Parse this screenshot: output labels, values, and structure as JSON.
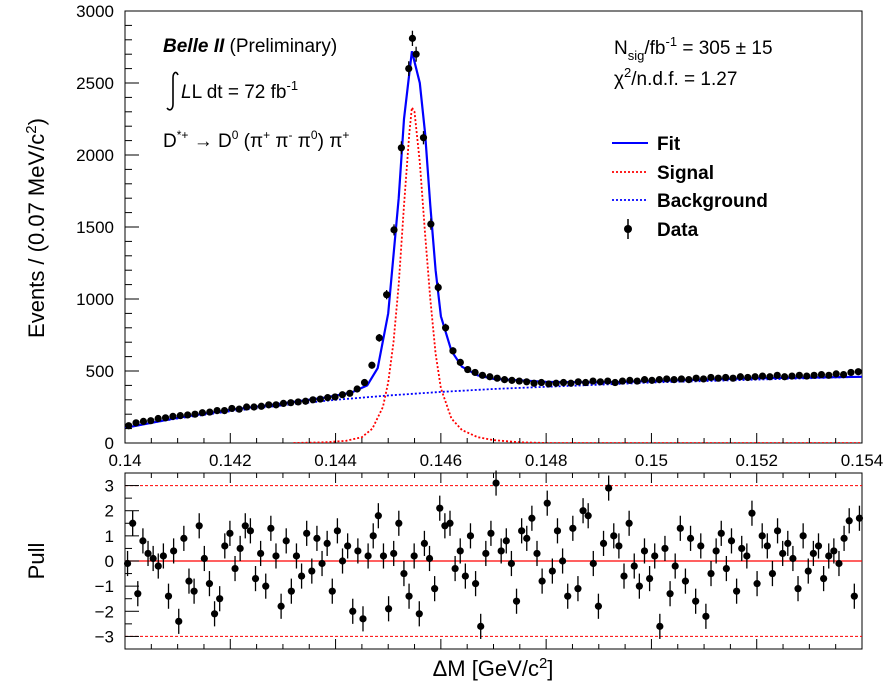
{
  "chart_data": [
    {
      "type": "scatter",
      "panel": "main",
      "ylabel_parts": {
        "pre": "Events / (0.07 MeV/c",
        "sup": "2",
        "post": ")"
      },
      "xlim": [
        0.14,
        0.154
      ],
      "ylim": [
        0,
        3000
      ],
      "x_ticks": [
        0.14,
        0.142,
        0.144,
        0.146,
        0.148,
        0.15,
        0.152,
        0.154
      ],
      "x_tick_labels": [
        "0.14",
        "0.142",
        "0.144",
        "0.146",
        "0.148",
        "0.15",
        "0.152",
        "0.154"
      ],
      "y_ticks": [
        0,
        500,
        1000,
        1500,
        2000,
        2500,
        3000
      ],
      "y_tick_labels": [
        "0",
        "500",
        "1000",
        "1500",
        "2000",
        "2500",
        "3000"
      ],
      "legend_position": "right",
      "legend": [
        {
          "label": "Fit",
          "style": "solid-line",
          "color": "#0000ff"
        },
        {
          "label": "Signal",
          "style": "dotted-line",
          "color": "#ff0000"
        },
        {
          "label": "Background",
          "style": "dotted-line",
          "color": "#0000ff"
        },
        {
          "label": "Data",
          "style": "marker",
          "color": "#000000"
        }
      ],
      "annotations": {
        "experiment": "Belle II",
        "preliminary": "(Preliminary)",
        "lumi_pre": "L dt = 72 fb",
        "lumi_sup": "-1",
        "decay": {
          "p1": "D",
          "p1_sup": "*+",
          "arrow": " → D",
          "p2_sup": "0",
          "p3": " (π",
          "p3_sup": "+",
          "p4": " π",
          "p4_sup": "-",
          "p5": " π",
          "p5_sup": "0",
          "p6": ") π",
          "p6_sup": "+"
        },
        "nsig": {
          "a": "N",
          "a_sub": "sig",
          "b": "/fb",
          "b_sup": "-1",
          "c": " = 305 ± 15"
        },
        "chi2": {
          "a": "χ",
          "a_sup": "2",
          "b": "/n.d.f. = 1.27"
        }
      },
      "series": [
        {
          "name": "Data",
          "points": [
            [
              0.14007,
              120
            ],
            [
              0.14021,
              140
            ],
            [
              0.14035,
              150
            ],
            [
              0.14049,
              155
            ],
            [
              0.14063,
              170
            ],
            [
              0.14077,
              175
            ],
            [
              0.14091,
              185
            ],
            [
              0.14105,
              190
            ],
            [
              0.14119,
              195
            ],
            [
              0.14133,
              200
            ],
            [
              0.14147,
              210
            ],
            [
              0.14161,
              215
            ],
            [
              0.14175,
              225
            ],
            [
              0.14189,
              225
            ],
            [
              0.14203,
              240
            ],
            [
              0.14217,
              235
            ],
            [
              0.14231,
              250
            ],
            [
              0.14245,
              250
            ],
            [
              0.14259,
              255
            ],
            [
              0.14273,
              265
            ],
            [
              0.14287,
              265
            ],
            [
              0.14301,
              275
            ],
            [
              0.14315,
              280
            ],
            [
              0.14329,
              285
            ],
            [
              0.14343,
              290
            ],
            [
              0.14357,
              300
            ],
            [
              0.14371,
              305
            ],
            [
              0.14385,
              315
            ],
            [
              0.14399,
              320
            ],
            [
              0.14413,
              335
            ],
            [
              0.14427,
              345
            ],
            [
              0.14441,
              375
            ],
            [
              0.14455,
              420
            ],
            [
              0.14469,
              540
            ],
            [
              0.14483,
              730
            ],
            [
              0.14497,
              1030
            ],
            [
              0.14511,
              1480
            ],
            [
              0.14525,
              2050
            ],
            [
              0.14539,
              2600
            ],
            [
              0.14546,
              2810
            ],
            [
              0.14553,
              2700
            ],
            [
              0.14567,
              2120
            ],
            [
              0.14581,
              1520
            ],
            [
              0.14595,
              1080
            ],
            [
              0.14609,
              800
            ],
            [
              0.14623,
              640
            ],
            [
              0.14637,
              560
            ],
            [
              0.14651,
              510
            ],
            [
              0.14665,
              490
            ],
            [
              0.14679,
              470
            ],
            [
              0.14693,
              460
            ],
            [
              0.14707,
              450
            ],
            [
              0.14721,
              440
            ],
            [
              0.14735,
              435
            ],
            [
              0.14749,
              430
            ],
            [
              0.14763,
              425
            ],
            [
              0.14777,
              415
            ],
            [
              0.14791,
              420
            ],
            [
              0.14805,
              410
            ],
            [
              0.14819,
              415
            ],
            [
              0.14833,
              420
            ],
            [
              0.14847,
              415
            ],
            [
              0.14861,
              425
            ],
            [
              0.14875,
              420
            ],
            [
              0.14889,
              430
            ],
            [
              0.14903,
              425
            ],
            [
              0.14917,
              430
            ],
            [
              0.14931,
              420
            ],
            [
              0.14945,
              430
            ],
            [
              0.14959,
              435
            ],
            [
              0.14973,
              430
            ],
            [
              0.14987,
              440
            ],
            [
              0.15001,
              435
            ],
            [
              0.15015,
              440
            ],
            [
              0.15029,
              445
            ],
            [
              0.15043,
              440
            ],
            [
              0.15057,
              445
            ],
            [
              0.15071,
              440
            ],
            [
              0.15085,
              450
            ],
            [
              0.15099,
              445
            ],
            [
              0.15113,
              455
            ],
            [
              0.15127,
              450
            ],
            [
              0.15141,
              455
            ],
            [
              0.15155,
              450
            ],
            [
              0.15169,
              460
            ],
            [
              0.15183,
              455
            ],
            [
              0.15197,
              460
            ],
            [
              0.15211,
              465
            ],
            [
              0.15225,
              460
            ],
            [
              0.15239,
              470
            ],
            [
              0.15253,
              460
            ],
            [
              0.15267,
              465
            ],
            [
              0.15281,
              470
            ],
            [
              0.15295,
              465
            ],
            [
              0.15309,
              470
            ],
            [
              0.15323,
              475
            ],
            [
              0.15337,
              470
            ],
            [
              0.15351,
              480
            ],
            [
              0.15365,
              475
            ],
            [
              0.15379,
              490
            ],
            [
              0.15393,
              495
            ]
          ]
        },
        {
          "name": "Fit",
          "points": [
            [
              0.14,
              105
            ],
            [
              0.141,
              175
            ],
            [
              0.142,
              230
            ],
            [
              0.143,
              275
            ],
            [
              0.1438,
              315
            ],
            [
              0.1443,
              350
            ],
            [
              0.1446,
              400
            ],
            [
              0.1448,
              520
            ],
            [
              0.145,
              900
            ],
            [
              0.1452,
              1700
            ],
            [
              0.1453,
              2250
            ],
            [
              0.14545,
              2720
            ],
            [
              0.1456,
              2500
            ],
            [
              0.1457,
              2150
            ],
            [
              0.1458,
              1650
            ],
            [
              0.1459,
              1200
            ],
            [
              0.146,
              880
            ],
            [
              0.1462,
              640
            ],
            [
              0.1464,
              530
            ],
            [
              0.1467,
              470
            ],
            [
              0.147,
              445
            ],
            [
              0.148,
              425
            ],
            [
              0.149,
              420
            ],
            [
              0.15,
              430
            ],
            [
              0.151,
              440
            ],
            [
              0.152,
              450
            ],
            [
              0.153,
              455
            ],
            [
              0.154,
              460
            ]
          ]
        },
        {
          "name": "Signal",
          "points": [
            [
              0.1432,
              0
            ],
            [
              0.1438,
              5
            ],
            [
              0.1442,
              15
            ],
            [
              0.1445,
              40
            ],
            [
              0.1447,
              100
            ],
            [
              0.1449,
              250
            ],
            [
              0.145,
              420
            ],
            [
              0.1451,
              700
            ],
            [
              0.1452,
              1100
            ],
            [
              0.1453,
              1650
            ],
            [
              0.1454,
              2150
            ],
            [
              0.14545,
              2330
            ],
            [
              0.1455,
              2300
            ],
            [
              0.1456,
              1950
            ],
            [
              0.1457,
              1450
            ],
            [
              0.1458,
              1000
            ],
            [
              0.1459,
              620
            ],
            [
              0.146,
              380
            ],
            [
              0.1462,
              170
            ],
            [
              0.1464,
              90
            ],
            [
              0.1467,
              40
            ],
            [
              0.147,
              20
            ],
            [
              0.1475,
              5
            ],
            [
              0.148,
              0
            ],
            [
              0.154,
              0
            ]
          ]
        },
        {
          "name": "Background",
          "points": [
            [
              0.14,
              105
            ],
            [
              0.1405,
              140
            ],
            [
              0.141,
              170
            ],
            [
              0.142,
              220
            ],
            [
              0.143,
              262
            ],
            [
              0.144,
              300
            ],
            [
              0.145,
              330
            ],
            [
              0.146,
              355
            ],
            [
              0.147,
              375
            ],
            [
              0.148,
              390
            ],
            [
              0.149,
              405
            ],
            [
              0.15,
              420
            ],
            [
              0.151,
              430
            ],
            [
              0.152,
              440
            ],
            [
              0.153,
              450
            ],
            [
              0.154,
              460
            ]
          ]
        }
      ]
    },
    {
      "type": "scatter",
      "panel": "pull",
      "ylabel": "Pull",
      "xlabel_parts": {
        "pre": "ΔM [GeV/c",
        "sup": "2",
        "post": "]"
      },
      "xlim": [
        0.14,
        0.154
      ],
      "ylim": [
        -3.5,
        3.5
      ],
      "y_ticks": [
        -3,
        -2,
        -1,
        0,
        1,
        2,
        3
      ],
      "y_tick_labels": [
        "−3",
        "−2",
        "−1",
        "0",
        "1",
        "2",
        "3"
      ],
      "reference_lines": [
        0,
        3,
        -3
      ],
      "values": [
        -0.1,
        1.5,
        -1.3,
        0.8,
        0.3,
        0.1,
        -0.2,
        0.2,
        -1.4,
        0.4,
        -2.4,
        0.9,
        -0.8,
        -1.2,
        1.4,
        0.1,
        -0.9,
        -2.1,
        -1.5,
        0.6,
        1.1,
        -0.3,
        0.5,
        1.4,
        1.2,
        -0.7,
        0.3,
        -1.0,
        1.3,
        0.2,
        -1.8,
        0.8,
        -1.2,
        0.2,
        -0.6,
        1.1,
        -0.4,
        0.9,
        -0.1,
        0.7,
        -1.2,
        1.2,
        0.0,
        0.6,
        -2.0,
        0.4,
        -2.3,
        0.2,
        1.0,
        1.8,
        0.2,
        -1.9,
        0.3,
        1.5,
        -0.5,
        -1.4,
        0.2,
        -2.1,
        0.7,
        0.1,
        -1.1,
        2.1,
        1.4,
        1.5,
        -0.3,
        0.4,
        -0.6,
        1.0,
        -0.9,
        -2.6,
        0.3,
        1.1,
        3.1,
        0.4,
        0.8,
        -0.1,
        -1.6,
        1.2,
        0.9,
        1.7,
        0.3,
        -0.8,
        2.3,
        -0.4,
        1.2,
        0.0,
        -1.4,
        1.3,
        -1.1,
        2.0,
        1.8,
        -0.1,
        -1.8,
        0.7,
        2.9,
        1.0,
        0.6,
        -0.6,
        1.5,
        -0.2,
        -1.0,
        0.4,
        -0.7,
        0.2,
        -2.6,
        0.5,
        -1.3,
        -0.2,
        1.3,
        -0.8,
        0.9,
        -1.6,
        0.6,
        -2.2,
        -0.5,
        0.4,
        1.1,
        -0.3,
        0.8,
        -1.2,
        0.5,
        0.2,
        1.9,
        -0.9,
        1.0,
        0.6,
        -0.5,
        1.2,
        0.3,
        0.7,
        0.1,
        -1.1,
        1.0,
        -0.4,
        0.3,
        0.6,
        -0.7,
        0.2,
        0.4,
        -0.1,
        0.9,
        1.6,
        -1.4,
        1.7
      ]
    }
  ]
}
